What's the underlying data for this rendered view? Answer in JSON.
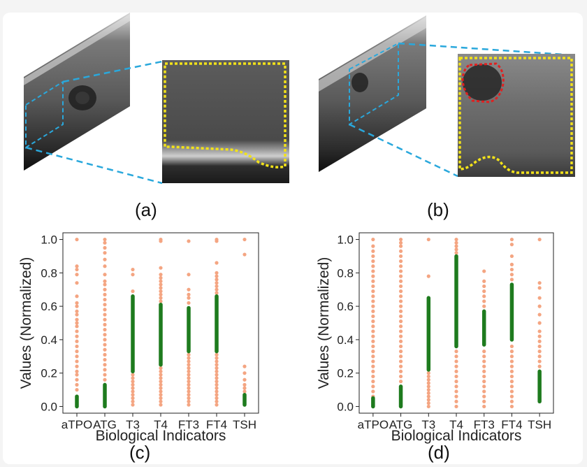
{
  "captions": {
    "a": "(a)",
    "b": "(b)",
    "c": "(c)",
    "d": "(d)"
  },
  "colors": {
    "normal_range": "#1e7b1e",
    "abnormal": "#f4a582",
    "region_outline": "#f2e21a",
    "nodule_outline": "#e02020",
    "zoom_guides": "#2aa8dc"
  },
  "chart_data": [
    {
      "type": "scatter",
      "panel": "c",
      "xlabel": "Biological Indicators",
      "ylabel": "Values (Normalized)",
      "categories": [
        "aTPO",
        "ATG",
        "T3",
        "T4",
        "FT3",
        "FT4",
        "TSH"
      ],
      "yticks": [
        "0.0",
        "0.2",
        "0.4",
        "0.6",
        "0.8",
        "1.0"
      ],
      "ylim": [
        -0.04,
        1.04
      ],
      "grid": false,
      "series": [
        {
          "color": "abnormal",
          "points": {
            "aTPO": [
              0.06,
              0.1,
              0.13,
              0.16,
              0.19,
              0.21,
              0.24,
              0.27,
              0.3,
              0.33,
              0.36,
              0.39,
              0.42,
              0.45,
              0.48,
              0.5,
              0.52,
              0.55,
              0.57,
              0.6,
              0.62,
              0.66,
              0.74,
              0.79,
              0.82,
              0.84,
              1.0
            ],
            "ATG": [
              0.13,
              0.16,
              0.19,
              0.22,
              0.25,
              0.28,
              0.31,
              0.34,
              0.37,
              0.4,
              0.43,
              0.46,
              0.49,
              0.52,
              0.55,
              0.58,
              0.61,
              0.64,
              0.67,
              0.7,
              0.73,
              0.75,
              0.79,
              0.84,
              0.88,
              0.92,
              0.95,
              0.98,
              1.0
            ],
            "T3": [
              0.01,
              0.03,
              0.05,
              0.07,
              0.09,
              0.11,
              0.13,
              0.15,
              0.17,
              0.19,
              0.21,
              0.66,
              0.69,
              0.79,
              0.82
            ],
            "T4": [
              0.01,
              0.03,
              0.05,
              0.07,
              0.09,
              0.11,
              0.13,
              0.15,
              0.17,
              0.19,
              0.21,
              0.23,
              0.25,
              0.61,
              0.63,
              0.65,
              0.67,
              0.69,
              0.71,
              0.73,
              0.75,
              0.77,
              0.79,
              0.83,
              0.99,
              1.0
            ],
            "FT3": [
              0.01,
              0.03,
              0.05,
              0.07,
              0.09,
              0.11,
              0.13,
              0.15,
              0.17,
              0.19,
              0.21,
              0.23,
              0.25,
              0.27,
              0.29,
              0.31,
              0.33,
              0.59,
              0.62,
              0.65,
              0.67,
              0.7,
              0.79,
              0.99
            ],
            "FT4": [
              0.01,
              0.03,
              0.05,
              0.07,
              0.09,
              0.11,
              0.13,
              0.15,
              0.17,
              0.19,
              0.21,
              0.23,
              0.25,
              0.27,
              0.29,
              0.31,
              0.33,
              0.66,
              0.68,
              0.7,
              0.72,
              0.74,
              0.76,
              0.78,
              0.8,
              0.86,
              0.99,
              1.0
            ],
            "TSH": [
              0.07,
              0.09,
              0.11,
              0.13,
              0.16,
              0.2,
              0.24,
              0.91,
              1.0
            ]
          }
        },
        {
          "color": "normal_range",
          "ranges": {
            "aTPO": [
              0.0,
              0.06
            ],
            "ATG": [
              0.0,
              0.13
            ],
            "T3": [
              0.21,
              0.66
            ],
            "T4": [
              0.25,
              0.61
            ],
            "FT3": [
              0.33,
              0.59
            ],
            "FT4": [
              0.33,
              0.66
            ],
            "TSH": [
              0.01,
              0.07
            ]
          }
        }
      ]
    },
    {
      "type": "scatter",
      "panel": "d",
      "xlabel": "Biological Indicators",
      "ylabel": "Values (Normalized)",
      "categories": [
        "aTPO",
        "ATG",
        "T3",
        "T4",
        "FT3",
        "FT4",
        "TSH"
      ],
      "yticks": [
        "0.0",
        "0.2",
        "0.4",
        "0.6",
        "0.8",
        "1.0"
      ],
      "ylim": [
        -0.04,
        1.04
      ],
      "grid": false,
      "series": [
        {
          "color": "abnormal",
          "points": {
            "aTPO": [
              0.06,
              0.09,
              0.12,
              0.15,
              0.18,
              0.21,
              0.24,
              0.27,
              0.3,
              0.33,
              0.36,
              0.39,
              0.42,
              0.45,
              0.48,
              0.51,
              0.54,
              0.57,
              0.6,
              0.63,
              0.66,
              0.69,
              0.72,
              0.75,
              0.78,
              0.81,
              0.84,
              0.87,
              0.9,
              0.93,
              0.96,
              1.0
            ],
            "ATG": [
              0.12,
              0.15,
              0.18,
              0.21,
              0.24,
              0.27,
              0.3,
              0.33,
              0.36,
              0.39,
              0.42,
              0.45,
              0.48,
              0.51,
              0.54,
              0.57,
              0.6,
              0.63,
              0.66,
              0.69,
              0.72,
              0.75,
              0.78,
              0.81,
              0.84,
              0.87,
              0.9,
              0.93,
              0.96,
              0.98,
              1.0
            ],
            "T3": [
              0.0,
              0.02,
              0.04,
              0.06,
              0.08,
              0.1,
              0.12,
              0.14,
              0.16,
              0.18,
              0.2,
              0.22,
              0.78,
              1.0
            ],
            "T4": [
              0.0,
              0.03,
              0.06,
              0.09,
              0.12,
              0.15,
              0.18,
              0.21,
              0.24,
              0.27,
              0.3,
              0.33,
              0.36,
              0.9,
              0.92,
              0.94,
              0.96,
              0.98,
              1.0
            ],
            "FT3": [
              0.0,
              0.03,
              0.06,
              0.09,
              0.12,
              0.15,
              0.18,
              0.21,
              0.24,
              0.27,
              0.3,
              0.33,
              0.37,
              0.57,
              0.6,
              0.63,
              0.66,
              0.69,
              0.72,
              0.75,
              0.81
            ],
            "FT4": [
              0.0,
              0.03,
              0.06,
              0.09,
              0.12,
              0.15,
              0.18,
              0.21,
              0.24,
              0.27,
              0.3,
              0.33,
              0.36,
              0.4,
              0.73,
              0.76,
              0.79,
              0.82,
              0.85,
              0.9,
              0.97,
              1.0
            ],
            "TSH": [
              0.21,
              0.24,
              0.27,
              0.3,
              0.33,
              0.36,
              0.39,
              0.42,
              0.45,
              0.5,
              0.55,
              0.6,
              0.65,
              0.71,
              0.74,
              1.0
            ]
          }
        },
        {
          "color": "normal_range",
          "ranges": {
            "aTPO": [
              0.0,
              0.05
            ],
            "ATG": [
              0.0,
              0.12
            ],
            "T3": [
              0.22,
              0.65
            ],
            "T4": [
              0.36,
              0.9
            ],
            "FT3": [
              0.37,
              0.57
            ],
            "FT4": [
              0.4,
              0.73
            ],
            "TSH": [
              0.03,
              0.21
            ]
          }
        }
      ]
    }
  ]
}
